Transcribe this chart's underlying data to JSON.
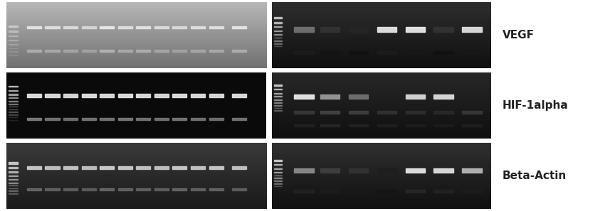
{
  "figure_width": 8.64,
  "figure_height": 2.97,
  "dpi": 100,
  "background_color": "#ffffff",
  "labels": [
    "VEGF",
    "HIF-1alpha",
    "Beta-Actin"
  ],
  "label_fontsize": 11,
  "label_color": "#222222"
}
